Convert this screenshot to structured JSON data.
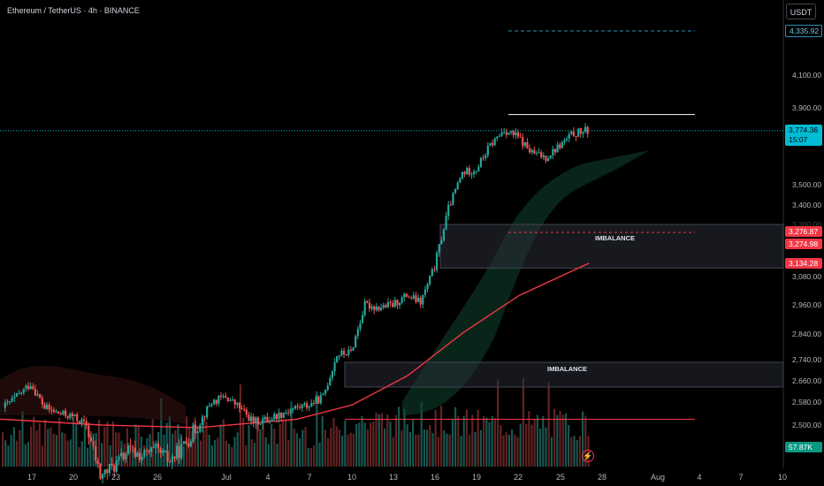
{
  "header": {
    "symbol_legend": "Ethereum / TetherUS · 4h · BINANCE",
    "currency_button": "USDT"
  },
  "price_axis": {
    "ticks": [
      "4,100.00",
      "3,900.00",
      "3,500.00",
      "3,400.00",
      "3,300.00",
      "3,080.00",
      "2,960.00",
      "2,840.00",
      "2,740.00",
      "2,660.00",
      "2,580.00",
      "2,500.00"
    ],
    "tags": {
      "target": "4,335.92",
      "last_price": "3,774.36",
      "countdown": "15:07",
      "imbalance_top": "3,276.87",
      "imbalance_bottom": "3,274.98",
      "ma_value": "3,134.28",
      "volume": "57.87K"
    }
  },
  "time_axis": {
    "ticks": [
      "17",
      "20",
      "23",
      "26",
      "Jul",
      "4",
      "7",
      "10",
      "13",
      "16",
      "19",
      "22",
      "25",
      "28",
      "Aug",
      "4",
      "7",
      "10"
    ]
  },
  "zones": {
    "upper_label": "IMBALANCE",
    "lower_label": "IMBALANCE"
  },
  "colors": {
    "up": "#26a69a",
    "down": "#ef5350",
    "ma": "#f23645",
    "target_line": "#2a8fb5",
    "background": "#000000"
  },
  "chart_data": {
    "type": "candlestick",
    "symbol": "Ethereum / TetherUS",
    "timeframe": "4h",
    "exchange": "BINANCE",
    "y_range": [
      2450,
      4400
    ],
    "close_path": [
      {
        "date": "Jun 15",
        "close": 2560
      },
      {
        "date": "Jun 16",
        "close": 2600
      },
      {
        "date": "Jun 17",
        "close": 2650
      },
      {
        "date": "Jun 18",
        "close": 2560
      },
      {
        "date": "Jun 19",
        "close": 2540
      },
      {
        "date": "Jun 20",
        "close": 2530
      },
      {
        "date": "Jun 21",
        "close": 2500
      },
      {
        "date": "Jun 22",
        "close": 2400
      },
      {
        "date": "Jun 23",
        "close": 2420
      },
      {
        "date": "Jun 24",
        "close": 2450
      },
      {
        "date": "Jun 25",
        "close": 2440
      },
      {
        "date": "Jun 26",
        "close": 2450
      },
      {
        "date": "Jun 27",
        "close": 2430
      },
      {
        "date": "Jun 28",
        "close": 2460
      },
      {
        "date": "Jun 29",
        "close": 2500
      },
      {
        "date": "Jun 30",
        "close": 2580
      },
      {
        "date": "Jul 1",
        "close": 2600
      },
      {
        "date": "Jul 2",
        "close": 2560
      },
      {
        "date": "Jul 3",
        "close": 2510
      },
      {
        "date": "Jul 4",
        "close": 2520
      },
      {
        "date": "Jul 5",
        "close": 2540
      },
      {
        "date": "Jul 6",
        "close": 2560
      },
      {
        "date": "Jul 7",
        "close": 2570
      },
      {
        "date": "Jul 8",
        "close": 2600
      },
      {
        "date": "Jul 9",
        "close": 2760
      },
      {
        "date": "Jul 10",
        "close": 2770
      },
      {
        "date": "Jul 11",
        "close": 2960
      },
      {
        "date": "Jul 12",
        "close": 2950
      },
      {
        "date": "Jul 13",
        "close": 2960
      },
      {
        "date": "Jul 14",
        "close": 3000
      },
      {
        "date": "Jul 15",
        "close": 2970
      },
      {
        "date": "Jul 16",
        "close": 3120
      },
      {
        "date": "Jul 17",
        "close": 3380
      },
      {
        "date": "Jul 18",
        "close": 3560
      },
      {
        "date": "Jul 19",
        "close": 3580
      },
      {
        "date": "Jul 20",
        "close": 3700
      },
      {
        "date": "Jul 21",
        "close": 3780
      },
      {
        "date": "Jul 22",
        "close": 3740
      },
      {
        "date": "Jul 23",
        "close": 3660
      },
      {
        "date": "Jul 24",
        "close": 3640
      },
      {
        "date": "Jul 25",
        "close": 3700
      },
      {
        "date": "Jul 26",
        "close": 3760
      },
      {
        "date": "Jul 27",
        "close": 3774.36
      }
    ],
    "moving_average": [
      {
        "date": "Jun 15",
        "value": 2520
      },
      {
        "date": "Jun 22",
        "value": 2500
      },
      {
        "date": "Jun 29",
        "value": 2495
      },
      {
        "date": "Jul 6",
        "value": 2520
      },
      {
        "date": "Jul 10",
        "value": 2570
      },
      {
        "date": "Jul 14",
        "value": 2680
      },
      {
        "date": "Jul 18",
        "value": 2850
      },
      {
        "date": "Jul 22",
        "value": 3000
      },
      {
        "date": "Jul 27",
        "value": 3134.28
      }
    ],
    "levels": {
      "target": 4335.92,
      "resistance": 3860,
      "last_price": 3774.36,
      "imbalance_upper": [
        3200,
        3276.87
      ],
      "imbalance_lower": [
        2680,
        2740
      ],
      "support": 2520
    }
  }
}
